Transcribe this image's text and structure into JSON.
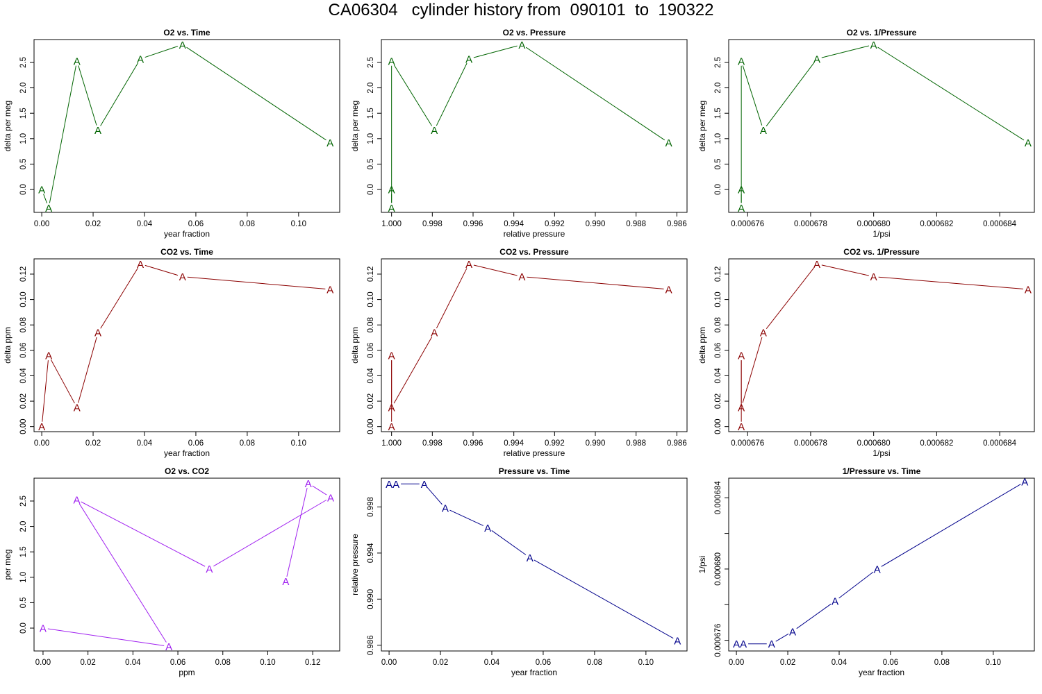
{
  "title": "CA06304   cylinder history from  090101  to  190322",
  "chart_data": [
    {
      "type": "line",
      "title": "O2 vs. Time",
      "xlabel": "year fraction",
      "ylabel": "delta per meg",
      "color": "#006400",
      "marker": "A",
      "xlim": [
        -0.003,
        0.116
      ],
      "ylim": [
        -0.45,
        2.95
      ],
      "xticks": [
        0.0,
        0.02,
        0.04,
        0.06,
        0.08,
        0.1
      ],
      "xticklabels": [
        "0.00",
        "0.02",
        "0.04",
        "0.06",
        "0.08",
        "0.10"
      ],
      "yticks": [
        0.0,
        0.5,
        1.0,
        1.5,
        2.0,
        2.5
      ],
      "yticklabels": [
        "0.0",
        "0.5",
        "1.0",
        "1.5",
        "2.0",
        "2.5"
      ],
      "x": [
        0.0,
        0.0027,
        0.0137,
        0.0219,
        0.0384,
        0.0548,
        0.1123
      ],
      "y": [
        0.0,
        -0.36,
        2.53,
        1.17,
        2.57,
        2.85,
        0.92
      ]
    },
    {
      "type": "line",
      "title": "O2 vs. Pressure",
      "xlabel": "relative pressure",
      "ylabel": "delta per meg",
      "color": "#006400",
      "marker": "A",
      "xlim": [
        1.0005,
        0.9855
      ],
      "ylim": [
        -0.45,
        2.95
      ],
      "xticks": [
        1.0,
        0.998,
        0.996,
        0.994,
        0.992,
        0.99,
        0.988,
        0.986
      ],
      "xticklabels": [
        "1.000",
        "0.998",
        "0.996",
        "0.994",
        "0.992",
        "0.990",
        "0.988",
        "0.986"
      ],
      "yticks": [
        0.0,
        0.5,
        1.0,
        1.5,
        2.0,
        2.5
      ],
      "yticklabels": [
        "0.0",
        "0.5",
        "1.0",
        "1.5",
        "2.0",
        "2.5"
      ],
      "x": [
        1.0,
        1.0,
        1.0,
        0.9979,
        0.9962,
        0.9936,
        0.9864
      ],
      "y": [
        0.0,
        -0.36,
        2.53,
        1.17,
        2.57,
        2.85,
        0.92
      ]
    },
    {
      "type": "line",
      "title": "O2 vs. 1/Pressure",
      "xlabel": "1/psi",
      "ylabel": "delta per meg",
      "color": "#006400",
      "marker": "A",
      "xlim": [
        0.0006754,
        0.0006851
      ],
      "ylim": [
        -0.45,
        2.95
      ],
      "xticks": [
        0.000676,
        0.000678,
        0.00068,
        0.000682,
        0.000684
      ],
      "xticklabels": [
        "0.000676",
        "0.000678",
        "0.000680",
        "0.000682",
        "0.000684"
      ],
      "yticks": [
        0.0,
        0.5,
        1.0,
        1.5,
        2.0,
        2.5
      ],
      "yticklabels": [
        "0.0",
        "0.5",
        "1.0",
        "1.5",
        "2.0",
        "2.5"
      ],
      "x": [
        0.0006758,
        0.0006758,
        0.0006758,
        0.0006765,
        0.0006782,
        0.00068,
        0.0006849
      ],
      "y": [
        0.0,
        -0.36,
        2.53,
        1.17,
        2.57,
        2.85,
        0.92
      ]
    },
    {
      "type": "line",
      "title": "CO2 vs. Time",
      "xlabel": "year fraction",
      "ylabel": "delta ppm",
      "color": "#8b0000",
      "marker": "A",
      "xlim": [
        -0.003,
        0.116
      ],
      "ylim": [
        -0.004,
        0.132
      ],
      "xticks": [
        0.0,
        0.02,
        0.04,
        0.06,
        0.08,
        0.1
      ],
      "xticklabels": [
        "0.00",
        "0.02",
        "0.04",
        "0.06",
        "0.08",
        "0.10"
      ],
      "yticks": [
        0.0,
        0.02,
        0.04,
        0.06,
        0.08,
        0.1,
        0.12
      ],
      "yticklabels": [
        "0.00",
        "0.02",
        "0.04",
        "0.06",
        "0.08",
        "0.10",
        "0.12"
      ],
      "x": [
        0.0,
        0.0027,
        0.0137,
        0.0219,
        0.0384,
        0.0548,
        0.1123
      ],
      "y": [
        0.0,
        0.056,
        0.015,
        0.074,
        0.128,
        0.118,
        0.108
      ]
    },
    {
      "type": "line",
      "title": "CO2 vs. Pressure",
      "xlabel": "relative pressure",
      "ylabel": "delta ppm",
      "color": "#8b0000",
      "marker": "A",
      "xlim": [
        1.0005,
        0.9855
      ],
      "ylim": [
        -0.004,
        0.132
      ],
      "xticks": [
        1.0,
        0.998,
        0.996,
        0.994,
        0.992,
        0.99,
        0.988,
        0.986
      ],
      "xticklabels": [
        "1.000",
        "0.998",
        "0.996",
        "0.994",
        "0.992",
        "0.990",
        "0.988",
        "0.986"
      ],
      "yticks": [
        0.0,
        0.02,
        0.04,
        0.06,
        0.08,
        0.1,
        0.12
      ],
      "yticklabels": [
        "0.00",
        "0.02",
        "0.04",
        "0.06",
        "0.08",
        "0.10",
        "0.12"
      ],
      "x": [
        1.0,
        1.0,
        1.0,
        0.9979,
        0.9962,
        0.9936,
        0.9864
      ],
      "y": [
        0.0,
        0.056,
        0.015,
        0.074,
        0.128,
        0.118,
        0.108
      ]
    },
    {
      "type": "line",
      "title": "CO2 vs. 1/Pressure",
      "xlabel": "1/psi",
      "ylabel": "delta ppm",
      "color": "#8b0000",
      "marker": "A",
      "xlim": [
        0.0006754,
        0.0006851
      ],
      "ylim": [
        -0.004,
        0.132
      ],
      "xticks": [
        0.000676,
        0.000678,
        0.00068,
        0.000682,
        0.000684
      ],
      "xticklabels": [
        "0.000676",
        "0.000678",
        "0.000680",
        "0.000682",
        "0.000684"
      ],
      "yticks": [
        0.0,
        0.02,
        0.04,
        0.06,
        0.08,
        0.1,
        0.12
      ],
      "yticklabels": [
        "0.00",
        "0.02",
        "0.04",
        "0.06",
        "0.08",
        "0.10",
        "0.12"
      ],
      "x": [
        0.0006758,
        0.0006758,
        0.0006758,
        0.0006765,
        0.0006782,
        0.00068,
        0.0006849
      ],
      "y": [
        0.0,
        0.056,
        0.015,
        0.074,
        0.128,
        0.118,
        0.108
      ]
    },
    {
      "type": "line",
      "title": "O2 vs. CO2",
      "xlabel": "ppm",
      "ylabel": "per meg",
      "color": "#a020f0",
      "marker": "A",
      "xlim": [
        -0.004,
        0.132
      ],
      "ylim": [
        -0.45,
        2.95
      ],
      "xticks": [
        0.0,
        0.02,
        0.04,
        0.06,
        0.08,
        0.1,
        0.12
      ],
      "xticklabels": [
        "0.00",
        "0.02",
        "0.04",
        "0.06",
        "0.08",
        "0.10",
        "0.12"
      ],
      "yticks": [
        0.0,
        0.5,
        1.0,
        1.5,
        2.0,
        2.5
      ],
      "yticklabels": [
        "0.0",
        "0.5",
        "1.0",
        "1.5",
        "2.0",
        "2.5"
      ],
      "x": [
        0.0,
        0.056,
        0.015,
        0.074,
        0.128,
        0.118,
        0.108
      ],
      "y": [
        0.0,
        -0.36,
        2.53,
        1.17,
        2.57,
        2.85,
        0.92
      ]
    },
    {
      "type": "line",
      "title": "Pressure vs. Time",
      "xlabel": "year fraction",
      "ylabel": "relative pressure",
      "color": "#00008b",
      "marker": "A",
      "xlim": [
        -0.003,
        0.116
      ],
      "ylim": [
        0.9855,
        1.0005
      ],
      "xticks": [
        0.0,
        0.02,
        0.04,
        0.06,
        0.08,
        0.1
      ],
      "xticklabels": [
        "0.00",
        "0.02",
        "0.04",
        "0.06",
        "0.08",
        "0.10"
      ],
      "yticks": [
        0.986,
        0.99,
        0.994,
        0.998
      ],
      "yticklabels": [
        "0.986",
        "0.990",
        "0.994",
        "0.998"
      ],
      "x": [
        0.0,
        0.0027,
        0.0137,
        0.0219,
        0.0384,
        0.0548,
        0.1123
      ],
      "y": [
        1.0,
        1.0,
        1.0,
        0.9979,
        0.9962,
        0.9936,
        0.9864
      ]
    },
    {
      "type": "line",
      "title": "1/Pressure vs. Time",
      "xlabel": "year fraction",
      "ylabel": "1/psi",
      "color": "#00008b",
      "marker": "A",
      "xlim": [
        -0.003,
        0.116
      ],
      "ylim": [
        0.0006754,
        0.0006851
      ],
      "xticks": [
        0.0,
        0.02,
        0.04,
        0.06,
        0.08,
        0.1
      ],
      "xticklabels": [
        "0.00",
        "0.02",
        "0.04",
        "0.06",
        "0.08",
        "0.10"
      ],
      "yticks": [
        0.000676,
        0.000678,
        0.00068,
        0.000682,
        0.000684
      ],
      "yticklabels": [
        "0.000676",
        "",
        "0.000680",
        "",
        "0.000684"
      ],
      "x": [
        0.0,
        0.0027,
        0.0137,
        0.0219,
        0.0384,
        0.0548,
        0.1123
      ],
      "y": [
        0.0006758,
        0.0006758,
        0.0006758,
        0.0006765,
        0.0006782,
        0.00068,
        0.0006849
      ]
    }
  ]
}
